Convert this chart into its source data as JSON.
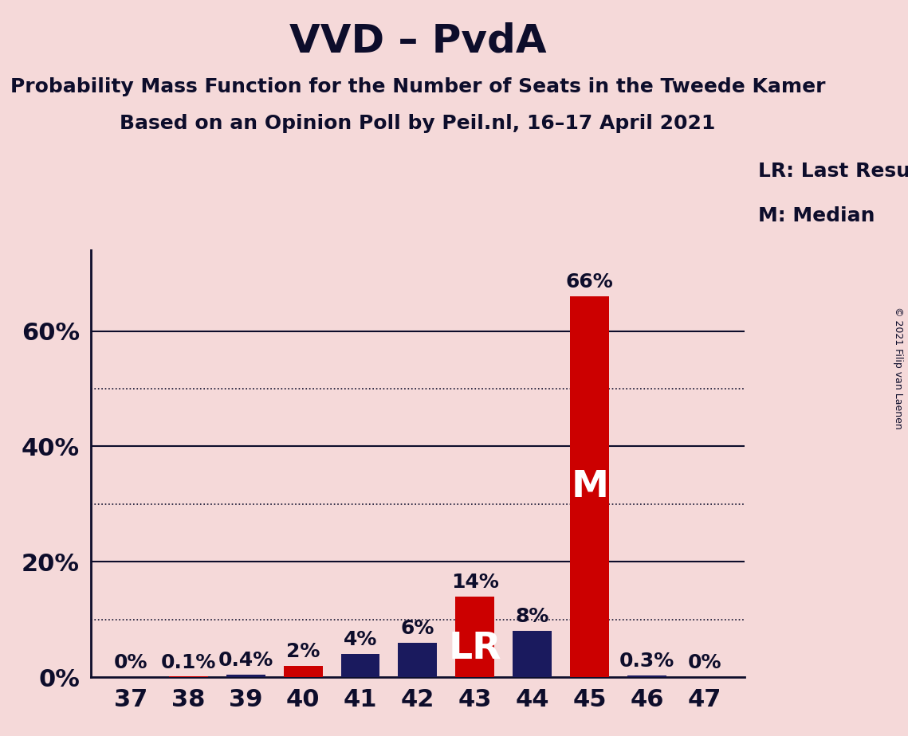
{
  "title": "VVD – PvdA",
  "subtitle1": "Probability Mass Function for the Number of Seats in the Tweede Kamer",
  "subtitle2": "Based on an Opinion Poll by Peil.nl, 16–17 April 2021",
  "copyright": "© 2021 Filip van Laenen",
  "seats": [
    37,
    38,
    39,
    40,
    41,
    42,
    43,
    44,
    45,
    46,
    47
  ],
  "values": [
    0.0,
    0.1,
    0.4,
    2.0,
    4.0,
    6.0,
    14.0,
    8.0,
    66.0,
    0.3,
    0.0
  ],
  "bar_colors": [
    "#1a1a5e",
    "#cc0000",
    "#1a1a5e",
    "#cc0000",
    "#1a1a5e",
    "#1a1a5e",
    "#cc0000",
    "#1a1a5e",
    "#cc0000",
    "#1a1a5e",
    "#1a1a5e"
  ],
  "labels": [
    "0%",
    "0.1%",
    "0.4%",
    "2%",
    "4%",
    "6%",
    "14%",
    "8%",
    "66%",
    "0.3%",
    "0%"
  ],
  "bar_labels": [
    "",
    "",
    "",
    "",
    "",
    "",
    "LR",
    "",
    "M",
    "",
    ""
  ],
  "background_color": "#f5d9d9",
  "text_color": "#0d0d2b",
  "legend_lr": "LR: Last Result",
  "legend_m": "M: Median",
  "ylim": [
    0,
    74
  ],
  "ytick_solid": [
    0,
    20,
    40,
    60
  ],
  "ytick_dotted": [
    10,
    30,
    50
  ],
  "ytick_labels_map": {
    "0": "0%",
    "20": "20%",
    "40": "40%",
    "60": "60%"
  },
  "title_fontsize": 36,
  "subtitle_fontsize": 18,
  "label_fontsize": 18,
  "tick_fontsize": 22,
  "bar_inner_label_fontsize": 34
}
